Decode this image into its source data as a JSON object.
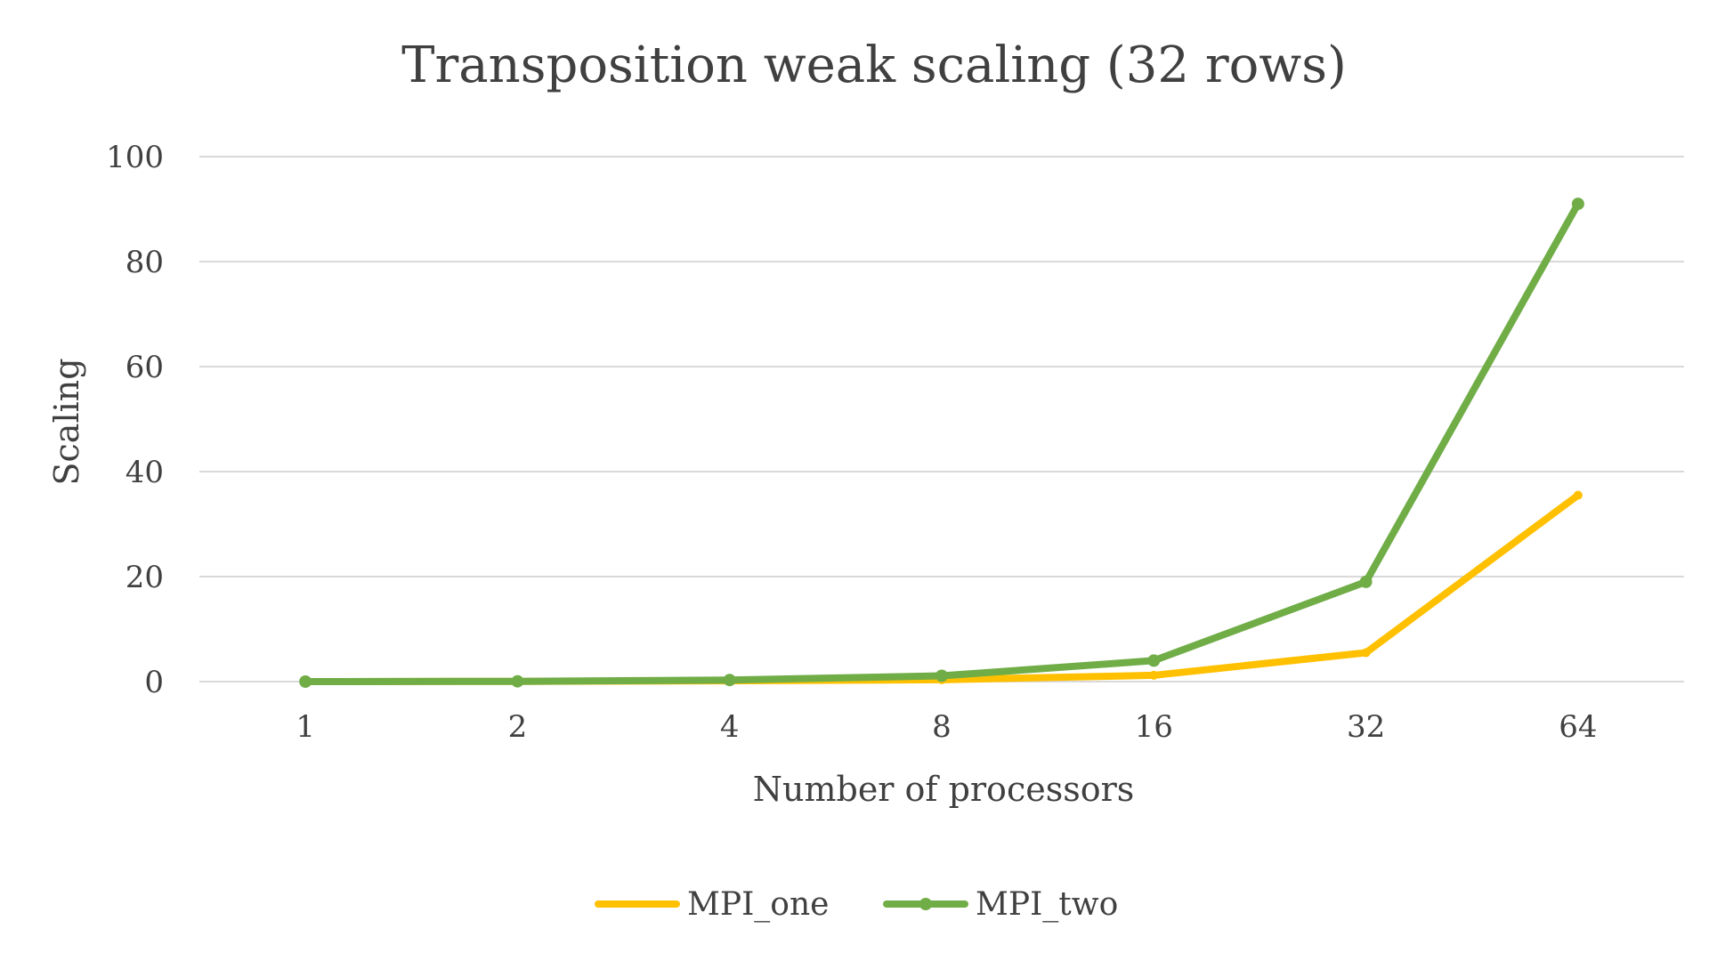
{
  "chart_data": {
    "type": "line",
    "title": "Transposition weak scaling (32 rows)",
    "xlabel": "Number of processors",
    "ylabel": "Scaling",
    "categories": [
      "1",
      "2",
      "4",
      "8",
      "16",
      "32",
      "64"
    ],
    "y_ticks": [
      "0",
      "20",
      "40",
      "60",
      "80",
      "100"
    ],
    "ylim": [
      0,
      100
    ],
    "grid": true,
    "legend_position": "bottom",
    "series": [
      {
        "name": "MPI_one",
        "color": "#ffc000",
        "values": [
          0.0,
          0.05,
          0.15,
          0.35,
          1.2,
          5.5,
          35.5
        ],
        "markers": false
      },
      {
        "name": "MPI_two",
        "color": "#70ad47",
        "values": [
          0.0,
          0.05,
          0.3,
          1.1,
          4.0,
          19.0,
          91.0
        ],
        "markers": true
      }
    ]
  }
}
